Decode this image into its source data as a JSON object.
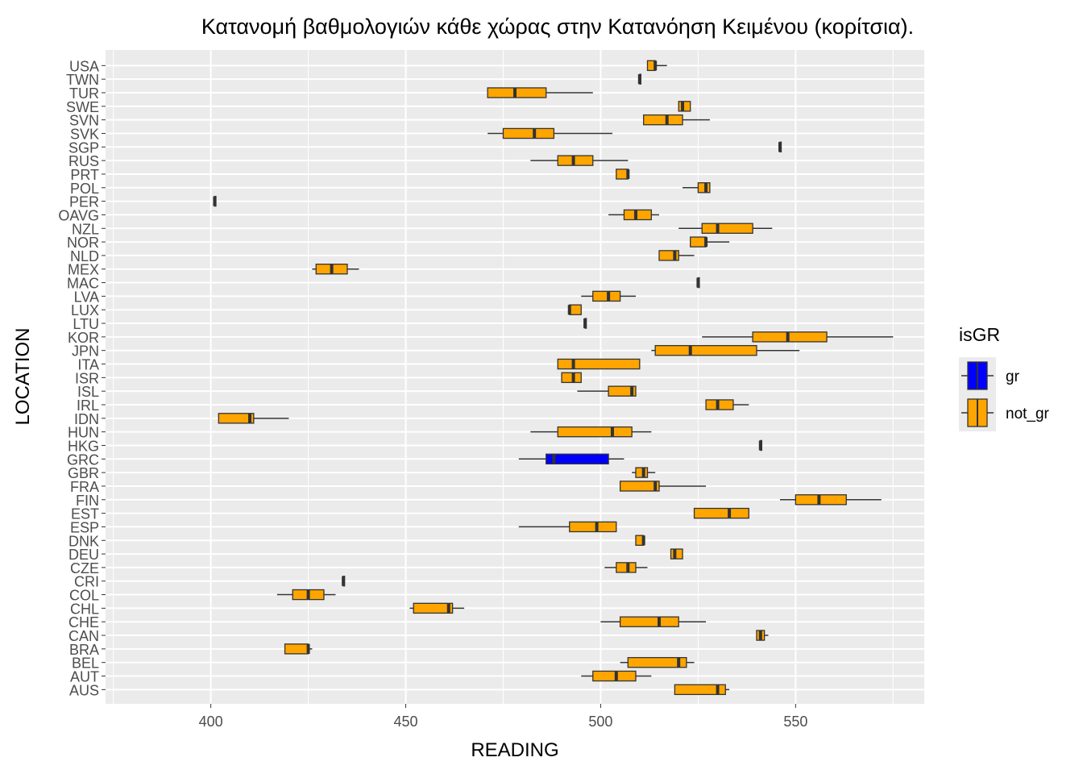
{
  "chart_data": {
    "type": "boxplot",
    "orientation": "horizontal",
    "title": "Κατανομή βαθμολογιών κάθε χώρας στην Κατανόηση Κειμένου (κορίτσια).",
    "xlabel": "READING",
    "ylabel": "LOCATION",
    "xlim": [
      373,
      583
    ],
    "x_ticks": [
      400,
      450,
      500,
      550
    ],
    "grid": true,
    "legend": {
      "title": "isGR",
      "position": "right",
      "entries": [
        {
          "label": "gr",
          "color": "#0000ff"
        },
        {
          "label": "not_gr",
          "color": "#ffa500"
        }
      ]
    },
    "colors": {
      "panel": "#ebebeb",
      "grid": "#ffffff",
      "outline": "#333333"
    },
    "categories": [
      "AUS",
      "AUT",
      "BEL",
      "BRA",
      "CAN",
      "CHE",
      "CHL",
      "COL",
      "CRI",
      "CZE",
      "DEU",
      "DNK",
      "ESP",
      "EST",
      "FIN",
      "FRA",
      "GBR",
      "GRC",
      "HKG",
      "HUN",
      "IDN",
      "IRL",
      "ISL",
      "ISR",
      "ITA",
      "JPN",
      "KOR",
      "LTU",
      "LUX",
      "LVA",
      "MAC",
      "MEX",
      "NLD",
      "NOR",
      "NZL",
      "OAVG",
      "PER",
      "POL",
      "PRT",
      "RUS",
      "SGP",
      "SVK",
      "SVN",
      "SWE",
      "TUR",
      "TWN",
      "USA"
    ],
    "series": [
      {
        "category": "AUS",
        "group": "not_gr",
        "min": 519,
        "q1": 519,
        "median": 530,
        "q3": 532,
        "max": 533
      },
      {
        "category": "AUT",
        "group": "not_gr",
        "min": 495,
        "q1": 498,
        "median": 504,
        "q3": 509,
        "max": 513
      },
      {
        "category": "BEL",
        "group": "not_gr",
        "min": 505,
        "q1": 507,
        "median": 520,
        "q3": 522,
        "max": 524
      },
      {
        "category": "BRA",
        "group": "not_gr",
        "min": 419,
        "q1": 419,
        "median": 425,
        "q3": 425,
        "max": 426
      },
      {
        "category": "CAN",
        "group": "not_gr",
        "min": 540,
        "q1": 540,
        "median": 541,
        "q3": 542,
        "max": 543
      },
      {
        "category": "CHE",
        "group": "not_gr",
        "min": 500,
        "q1": 505,
        "median": 515,
        "q3": 520,
        "max": 527
      },
      {
        "category": "CHL",
        "group": "not_gr",
        "min": 451,
        "q1": 452,
        "median": 461,
        "q3": 462,
        "max": 465
      },
      {
        "category": "COL",
        "group": "not_gr",
        "min": 417,
        "q1": 421,
        "median": 425,
        "q3": 429,
        "max": 432
      },
      {
        "category": "CRI",
        "group": "not_gr",
        "min": 434,
        "q1": 434,
        "median": 434,
        "q3": 434,
        "max": 434
      },
      {
        "category": "CZE",
        "group": "not_gr",
        "min": 501,
        "q1": 504,
        "median": 507,
        "q3": 509,
        "max": 512
      },
      {
        "category": "DEU",
        "group": "not_gr",
        "min": 518,
        "q1": 518,
        "median": 519,
        "q3": 521,
        "max": 521
      },
      {
        "category": "DNK",
        "group": "not_gr",
        "min": 509,
        "q1": 509,
        "median": 511,
        "q3": 511,
        "max": 511
      },
      {
        "category": "ESP",
        "group": "not_gr",
        "min": 479,
        "q1": 492,
        "median": 499,
        "q3": 504,
        "max": 504
      },
      {
        "category": "EST",
        "group": "not_gr",
        "min": 524,
        "q1": 524,
        "median": 533,
        "q3": 538,
        "max": 538
      },
      {
        "category": "FIN",
        "group": "not_gr",
        "min": 546,
        "q1": 550,
        "median": 556,
        "q3": 563,
        "max": 572
      },
      {
        "category": "FRA",
        "group": "not_gr",
        "min": 505,
        "q1": 505,
        "median": 514,
        "q3": 515,
        "max": 527
      },
      {
        "category": "GBR",
        "group": "not_gr",
        "min": 508,
        "q1": 509,
        "median": 511,
        "q3": 512,
        "max": 514
      },
      {
        "category": "GRC",
        "group": "gr",
        "min": 479,
        "q1": 486,
        "median": 488,
        "q3": 502,
        "max": 506
      },
      {
        "category": "HKG",
        "group": "not_gr",
        "min": 541,
        "q1": 541,
        "median": 541,
        "q3": 541,
        "max": 541
      },
      {
        "category": "HUN",
        "group": "not_gr",
        "min": 482,
        "q1": 489,
        "median": 503,
        "q3": 508,
        "max": 513
      },
      {
        "category": "IDN",
        "group": "not_gr",
        "min": 402,
        "q1": 402,
        "median": 410,
        "q3": 411,
        "max": 420
      },
      {
        "category": "IRL",
        "group": "not_gr",
        "min": 527,
        "q1": 527,
        "median": 530,
        "q3": 534,
        "max": 538
      },
      {
        "category": "ISL",
        "group": "not_gr",
        "min": 494,
        "q1": 502,
        "median": 508,
        "q3": 509,
        "max": 509
      },
      {
        "category": "ISR",
        "group": "not_gr",
        "min": 490,
        "q1": 490,
        "median": 493,
        "q3": 495,
        "max": 495
      },
      {
        "category": "ITA",
        "group": "not_gr",
        "min": 489,
        "q1": 489,
        "median": 493,
        "q3": 510,
        "max": 510
      },
      {
        "category": "JPN",
        "group": "not_gr",
        "min": 513,
        "q1": 514,
        "median": 523,
        "q3": 540,
        "max": 551
      },
      {
        "category": "KOR",
        "group": "not_gr",
        "min": 526,
        "q1": 539,
        "median": 548,
        "q3": 558,
        "max": 575
      },
      {
        "category": "LTU",
        "group": "not_gr",
        "min": 496,
        "q1": 496,
        "median": 496,
        "q3": 496,
        "max": 496
      },
      {
        "category": "LUX",
        "group": "not_gr",
        "min": 492,
        "q1": 492,
        "median": 492,
        "q3": 495,
        "max": 495
      },
      {
        "category": "LVA",
        "group": "not_gr",
        "min": 495,
        "q1": 498,
        "median": 502,
        "q3": 505,
        "max": 509
      },
      {
        "category": "MAC",
        "group": "not_gr",
        "min": 525,
        "q1": 525,
        "median": 525,
        "q3": 525,
        "max": 525
      },
      {
        "category": "MEX",
        "group": "not_gr",
        "min": 426,
        "q1": 427,
        "median": 431,
        "q3": 435,
        "max": 438
      },
      {
        "category": "NLD",
        "group": "not_gr",
        "min": 515,
        "q1": 515,
        "median": 519,
        "q3": 520,
        "max": 524
      },
      {
        "category": "NOR",
        "group": "not_gr",
        "min": 523,
        "q1": 523,
        "median": 527,
        "q3": 527,
        "max": 533
      },
      {
        "category": "NZL",
        "group": "not_gr",
        "min": 520,
        "q1": 526,
        "median": 530,
        "q3": 539,
        "max": 544
      },
      {
        "category": "OAVG",
        "group": "not_gr",
        "min": 502,
        "q1": 506,
        "median": 509,
        "q3": 513,
        "max": 515
      },
      {
        "category": "PER",
        "group": "not_gr",
        "min": 401,
        "q1": 401,
        "median": 401,
        "q3": 401,
        "max": 401
      },
      {
        "category": "POL",
        "group": "not_gr",
        "min": 521,
        "q1": 525,
        "median": 527,
        "q3": 528,
        "max": 528
      },
      {
        "category": "PRT",
        "group": "not_gr",
        "min": 504,
        "q1": 504,
        "median": 507,
        "q3": 507,
        "max": 507
      },
      {
        "category": "RUS",
        "group": "not_gr",
        "min": 482,
        "q1": 489,
        "median": 493,
        "q3": 498,
        "max": 507
      },
      {
        "category": "SGP",
        "group": "not_gr",
        "min": 546,
        "q1": 546,
        "median": 546,
        "q3": 546,
        "max": 546
      },
      {
        "category": "SVK",
        "group": "not_gr",
        "min": 471,
        "q1": 475,
        "median": 483,
        "q3": 488,
        "max": 503
      },
      {
        "category": "SVN",
        "group": "not_gr",
        "min": 511,
        "q1": 511,
        "median": 517,
        "q3": 521,
        "max": 528
      },
      {
        "category": "SWE",
        "group": "not_gr",
        "min": 520,
        "q1": 520,
        "median": 521,
        "q3": 523,
        "max": 523
      },
      {
        "category": "TUR",
        "group": "not_gr",
        "min": 471,
        "q1": 471,
        "median": 478,
        "q3": 486,
        "max": 498
      },
      {
        "category": "TWN",
        "group": "not_gr",
        "min": 510,
        "q1": 510,
        "median": 510,
        "q3": 510,
        "max": 510
      },
      {
        "category": "USA",
        "group": "not_gr",
        "min": 512,
        "q1": 512,
        "median": 514,
        "q3": 514,
        "max": 517
      }
    ]
  }
}
